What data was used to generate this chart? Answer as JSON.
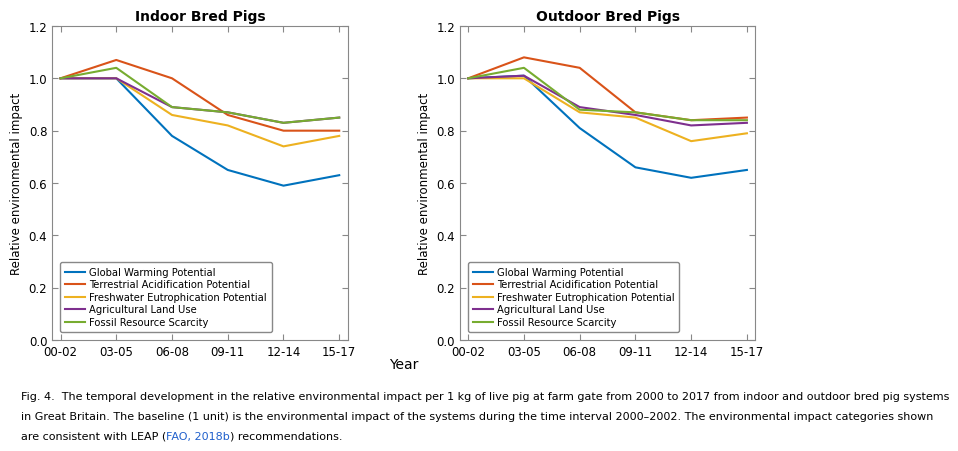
{
  "x_labels": [
    "00-02",
    "03-05",
    "06-08",
    "09-11",
    "12-14",
    "15-17"
  ],
  "x_positions": [
    0,
    1,
    2,
    3,
    4,
    5
  ],
  "indoor": {
    "title": "Indoor Bred Pigs",
    "GWP": [
      1.0,
      1.0,
      0.78,
      0.65,
      0.59,
      0.63
    ],
    "TAP": [
      1.0,
      1.07,
      1.0,
      0.86,
      0.8,
      0.8
    ],
    "FEP": [
      1.0,
      1.0,
      0.86,
      0.82,
      0.74,
      0.78
    ],
    "ALU": [
      1.0,
      1.0,
      0.89,
      0.87,
      0.83,
      0.85
    ],
    "FRS": [
      1.0,
      1.04,
      0.89,
      0.87,
      0.83,
      0.85
    ]
  },
  "outdoor": {
    "title": "Outdoor Bred Pigs",
    "GWP": [
      1.0,
      1.01,
      0.81,
      0.66,
      0.62,
      0.65
    ],
    "TAP": [
      1.0,
      1.08,
      1.04,
      0.87,
      0.84,
      0.85
    ],
    "FEP": [
      1.0,
      1.0,
      0.87,
      0.85,
      0.76,
      0.79
    ],
    "ALU": [
      1.0,
      1.01,
      0.89,
      0.86,
      0.82,
      0.83
    ],
    "FRS": [
      1.0,
      1.04,
      0.88,
      0.87,
      0.84,
      0.84
    ]
  },
  "colors": {
    "GWP": "#0072BD",
    "TAP": "#D95319",
    "FEP": "#EDB120",
    "ALU": "#7E2F8E",
    "FRS": "#77AC30"
  },
  "legend_labels": {
    "GWP": "Global Warming Potential",
    "TAP": "Terrestrial Acidification Potential",
    "FEP": "Freshwater Eutrophication Potential",
    "ALU": "Agricultural Land Use",
    "FRS": "Fossil Resource Scarcity"
  },
  "ylabel": "Relative environmental impact",
  "xlabel": "Year",
  "ylim": [
    0,
    1.2
  ],
  "yticks": [
    0,
    0.2,
    0.4,
    0.6,
    0.8,
    1.0,
    1.2
  ],
  "caption_line1": "Fig. 4.  The temporal development in the relative environmental impact per 1 kg of live pig at farm gate from 2000 to 2017 from indoor and outdoor bred pig systems",
  "caption_line2": "in Great Britain. The baseline (1 unit) is the environmental impact of the systems during the time interval 2000–2002. The environmental impact categories shown",
  "caption_line3_pre": "are consistent with LEAP (",
  "caption_line3_link": "FAO, 2018b",
  "caption_line3_post": ") recommendations.",
  "linewidth": 1.5
}
